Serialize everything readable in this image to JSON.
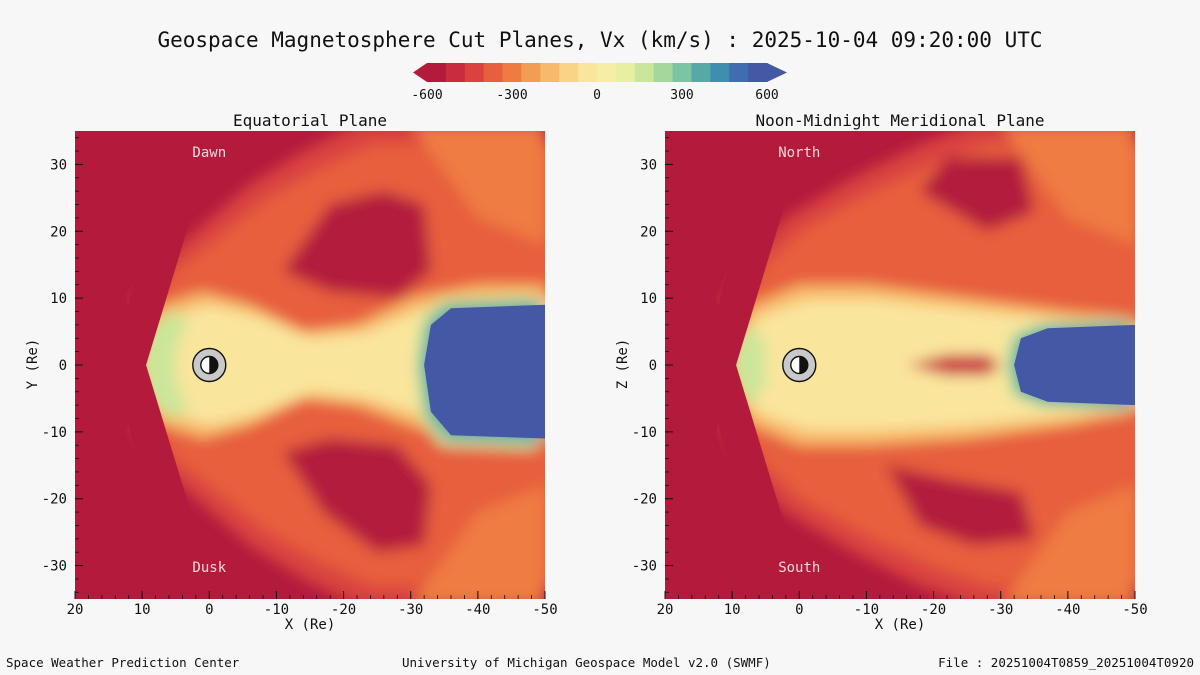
{
  "title": "Geospace Magnetosphere Cut Planes, Vx (km/s) : 2025-10-04 09:20:00 UTC",
  "colors": {
    "scale": [
      "#b41a3c",
      "#c92c3f",
      "#da4240",
      "#e75f3e",
      "#ef7b43",
      "#f39c53",
      "#f7b96a",
      "#f9d386",
      "#fae59c",
      "#f6eea6",
      "#e7f0a0",
      "#cbe69a",
      "#a6d79a",
      "#7cc5a2",
      "#56aaa6",
      "#3f8eb0",
      "#3e6db0",
      "#4458a6"
    ],
    "background": "#b41a3c",
    "tail": "#4458a6"
  },
  "chart_data": [
    {
      "type": "heatmap",
      "title": "Equatorial Plane",
      "xlabel": "X (Re)",
      "ylabel": "Y (Re)",
      "xlim": [
        20,
        -50
      ],
      "ylim": [
        -35,
        35
      ],
      "x_ticks": [
        "20",
        "10",
        "0",
        "-10",
        "-20",
        "-30",
        "-40",
        "-50"
      ],
      "y_ticks": [
        "30",
        "20",
        "10",
        "0",
        "-10",
        "-20",
        "-30"
      ],
      "annotations": {
        "top": "Dawn",
        "bottom": "Dusk"
      },
      "colorbar": {
        "label": "Vx (km/s)",
        "range": [
          -600,
          600
        ],
        "ticks": [
          "-600",
          "-300",
          "0",
          "300",
          "600"
        ]
      }
    },
    {
      "type": "heatmap",
      "title": "Noon-Midnight Meridional Plane",
      "xlabel": "X (Re)",
      "ylabel": "Z (Re)",
      "xlim": [
        20,
        -50
      ],
      "ylim": [
        -35,
        35
      ],
      "x_ticks": [
        "20",
        "10",
        "0",
        "-10",
        "-20",
        "-30",
        "-40",
        "-50"
      ],
      "y_ticks": [
        "30",
        "20",
        "10",
        "0",
        "-10",
        "-20",
        "-30"
      ],
      "annotations": {
        "top": "North",
        "bottom": "South"
      },
      "colorbar": {
        "label": "Vx (km/s)",
        "range": [
          -600,
          600
        ],
        "ticks": [
          "-600",
          "-300",
          "0",
          "300",
          "600"
        ]
      }
    }
  ],
  "footer": {
    "left": "Space Weather Prediction Center",
    "center": "University of Michigan Geospace Model v2.0 (SWMF)",
    "right": "File : 20251004T0859_20251004T0920"
  }
}
